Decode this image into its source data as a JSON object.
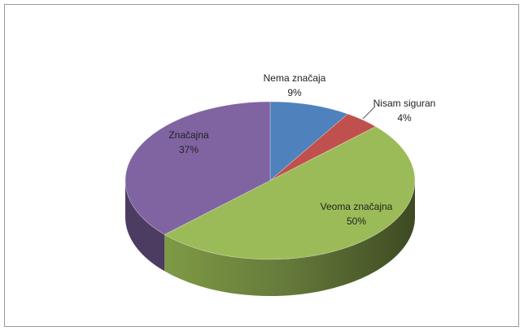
{
  "chart_data": {
    "type": "pie",
    "categories": [
      "Nema značaja",
      "Nisam siguran",
      "Veoma značajna",
      "Značajna"
    ],
    "values": [
      9,
      4,
      50,
      37
    ],
    "value_labels": [
      "9%",
      "4%",
      "50%",
      "37%"
    ],
    "colors": [
      "#4f81bd",
      "#c0504d",
      "#9bbb59",
      "#8064a2"
    ]
  }
}
